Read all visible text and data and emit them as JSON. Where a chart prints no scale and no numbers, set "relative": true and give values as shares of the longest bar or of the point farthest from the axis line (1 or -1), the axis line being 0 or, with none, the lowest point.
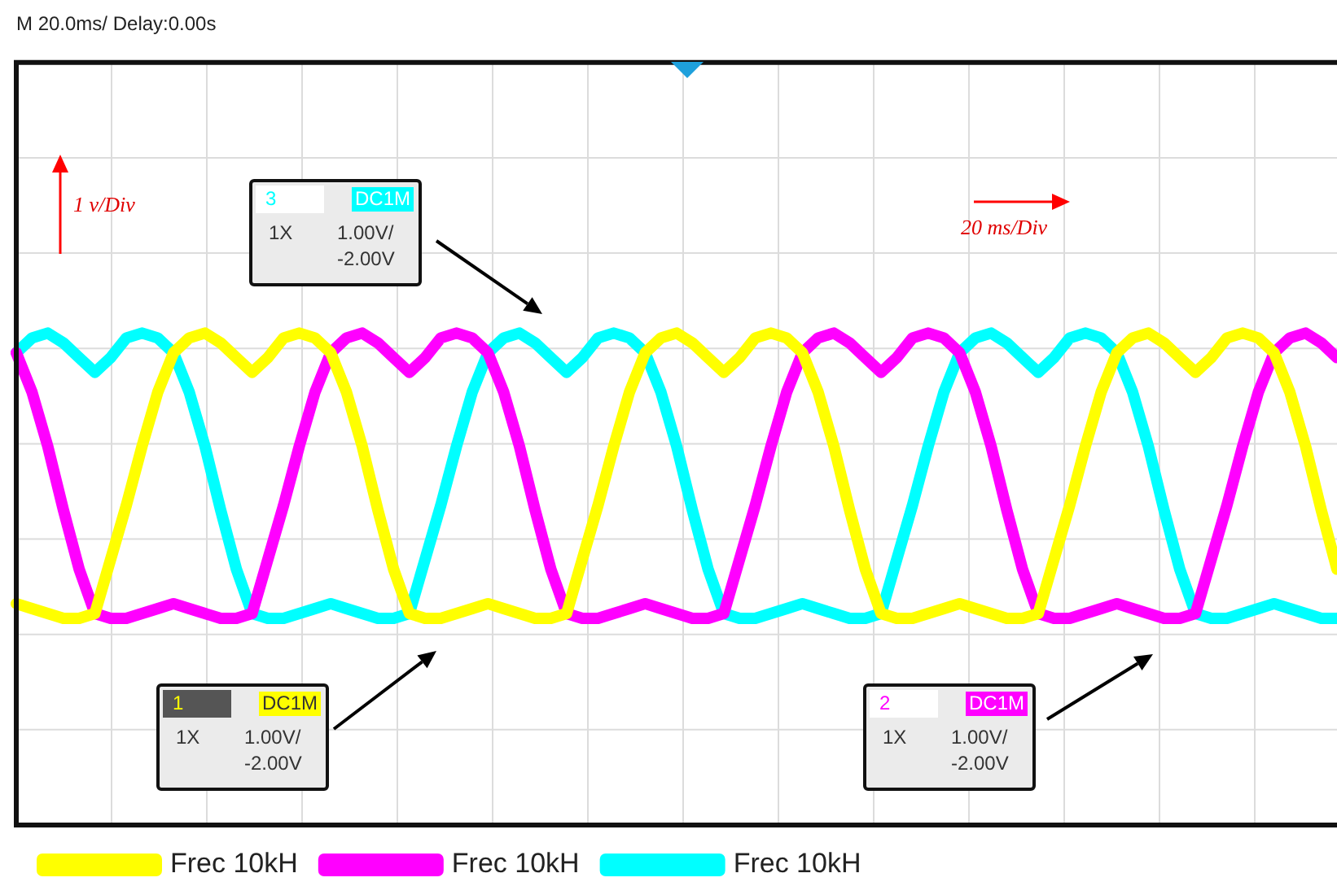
{
  "chart_data": {
    "type": "line",
    "title": "M 20.0ms/ Delay:0.00s",
    "relative": true,
    "grid": true,
    "legend": "bottom",
    "categories": [
      null,
      null,
      null,
      null,
      null,
      null,
      null,
      null,
      null,
      null,
      null,
      null,
      null,
      null,
      null,
      null,
      null,
      null,
      null,
      null,
      null,
      null,
      null,
      null,
      null,
      null,
      null,
      null,
      null,
      null,
      null,
      null,
      null,
      null,
      null,
      null,
      null,
      null,
      null,
      null,
      null,
      null,
      null,
      null,
      null,
      null,
      null,
      null,
      null,
      null,
      null,
      null,
      null,
      null,
      null,
      null,
      null,
      null,
      null,
      null,
      null,
      null,
      null,
      null,
      null,
      null,
      null,
      null,
      null,
      null,
      null,
      null,
      null,
      null,
      null,
      null,
      null,
      null,
      null,
      null,
      null,
      null,
      null,
      null,
      null
    ],
    "series": [
      {
        "name": "Frec 10kH",
        "color": "#ffff00",
        "values": [
          0.45,
          0.44,
          0.43,
          0.42,
          0.42,
          0.43,
          0.54,
          0.65,
          0.77,
          0.88,
          0.96,
          0.99,
          1,
          0.98,
          0.95,
          0.92,
          0.95,
          0.99,
          1,
          0.99,
          0.96,
          0.88,
          0.77,
          0.64,
          0.52,
          0.43,
          0.42,
          0.42,
          0.43,
          0.44,
          0.45,
          0.44,
          0.43,
          0.42,
          0.42,
          0.43,
          0.54,
          0.65,
          0.77,
          0.88,
          0.96,
          0.99,
          1,
          0.98,
          0.95,
          0.92,
          0.95,
          0.99,
          1,
          0.99,
          0.96,
          0.88,
          0.77,
          0.64,
          0.52,
          0.43,
          0.42,
          0.42,
          0.43,
          0.44,
          0.45,
          0.44,
          0.43,
          0.42,
          0.42,
          0.43,
          0.54,
          0.65,
          0.77,
          0.88,
          0.96,
          0.99,
          1,
          0.98,
          0.95,
          0.92,
          0.95,
          0.99,
          1,
          0.99,
          0.96,
          0.88,
          0.77,
          0.64,
          0.52
        ]
      },
      {
        "name": "Frec 10kH",
        "color": "#ff00ff",
        "values": [
          0.96,
          0.88,
          0.77,
          0.64,
          0.52,
          0.43,
          0.42,
          0.42,
          0.43,
          0.44,
          0.45,
          0.44,
          0.43,
          0.42,
          0.42,
          0.43,
          0.54,
          0.65,
          0.77,
          0.88,
          0.96,
          0.99,
          1,
          0.98,
          0.95,
          0.92,
          0.95,
          0.99,
          1,
          0.99,
          0.96,
          0.88,
          0.77,
          0.64,
          0.52,
          0.43,
          0.42,
          0.42,
          0.43,
          0.44,
          0.45,
          0.44,
          0.43,
          0.42,
          0.42,
          0.43,
          0.54,
          0.65,
          0.77,
          0.88,
          0.96,
          0.99,
          1,
          0.98,
          0.95,
          0.92,
          0.95,
          0.99,
          1,
          0.99,
          0.96,
          0.88,
          0.77,
          0.64,
          0.52,
          0.43,
          0.42,
          0.42,
          0.43,
          0.44,
          0.45,
          0.44,
          0.43,
          0.42,
          0.42,
          0.43,
          0.54,
          0.65,
          0.77,
          0.88,
          0.96,
          0.99,
          1,
          0.98,
          0.95
        ]
      },
      {
        "name": "Frec 10kH",
        "color": "#00ffff",
        "values": [
          0.96,
          0.99,
          1,
          0.98,
          0.95,
          0.92,
          0.95,
          0.99,
          1,
          0.99,
          0.96,
          0.88,
          0.77,
          0.64,
          0.52,
          0.43,
          0.42,
          0.42,
          0.43,
          0.44,
          0.45,
          0.44,
          0.43,
          0.42,
          0.42,
          0.43,
          0.54,
          0.65,
          0.77,
          0.88,
          0.96,
          0.99,
          1,
          0.98,
          0.95,
          0.92,
          0.95,
          0.99,
          1,
          0.99,
          0.96,
          0.88,
          0.77,
          0.64,
          0.52,
          0.43,
          0.42,
          0.42,
          0.43,
          0.44,
          0.45,
          0.44,
          0.43,
          0.42,
          0.42,
          0.43,
          0.54,
          0.65,
          0.77,
          0.88,
          0.96,
          0.99,
          1,
          0.98,
          0.95,
          0.92,
          0.95,
          0.99,
          1,
          0.99,
          0.96,
          0.88,
          0.77,
          0.64,
          0.52,
          0.43,
          0.42,
          0.42,
          0.43,
          0.44,
          0.45,
          0.44,
          0.43,
          0.42,
          0.42
        ]
      }
    ],
    "annotations": [
      "1 v/Div",
      "20 ms/Div",
      "3",
      "DC1M",
      "1X",
      "1.00V/",
      "-2.00V",
      "1",
      "DC1M",
      "1X",
      "1.00V/",
      "-2.00V",
      "2",
      "DC1M",
      "1X",
      "1.00V/",
      "-2.00V"
    ]
  }
}
